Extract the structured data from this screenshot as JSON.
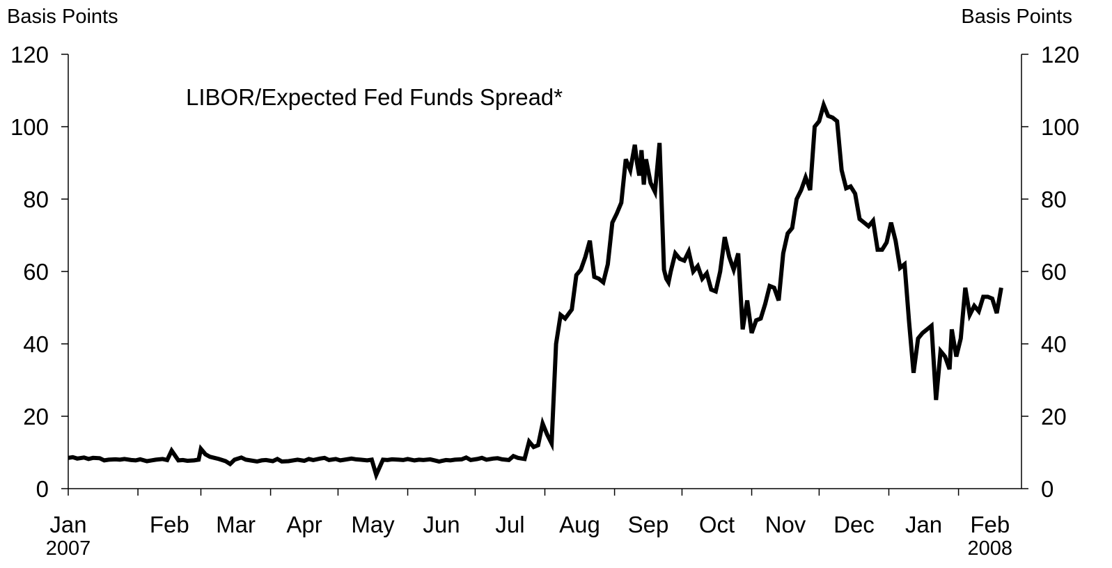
{
  "chart_data": {
    "type": "line",
    "title": "LIBOR/Expected Fed Funds Spread*",
    "ylabel_left": "Basis Points",
    "ylabel_right": "Basis Points",
    "ylim": [
      0,
      120
    ],
    "yticks": [
      0,
      20,
      40,
      60,
      80,
      100,
      120
    ],
    "xlim": [
      "2007-01-01",
      "2008-02-29"
    ],
    "xticks": [
      {
        "label": "Jan",
        "date": "2007-01-01"
      },
      {
        "label": "Feb",
        "date": "2007-02-01"
      },
      {
        "label": "Mar",
        "date": "2007-03-01"
      },
      {
        "label": "Apr",
        "date": "2007-04-01"
      },
      {
        "label": "May",
        "date": "2007-05-01"
      },
      {
        "label": "Jun",
        "date": "2007-06-01"
      },
      {
        "label": "Jul",
        "date": "2007-07-01"
      },
      {
        "label": "Aug",
        "date": "2007-08-01"
      },
      {
        "label": "Sep",
        "date": "2007-09-01"
      },
      {
        "label": "Oct",
        "date": "2007-10-01"
      },
      {
        "label": "Nov",
        "date": "2007-11-01"
      },
      {
        "label": "Dec",
        "date": "2007-12-01"
      },
      {
        "label": "Jan",
        "date": "2008-01-01"
      },
      {
        "label": "Feb",
        "date": "2008-02-01"
      }
    ],
    "year_labels": [
      {
        "label": "2007",
        "date": "2007-01-01"
      },
      {
        "label": "2008",
        "date": "2008-02-01"
      }
    ],
    "grid": false,
    "series": [
      {
        "color": "#000000",
        "x": [
          "2007-01-01",
          "2007-01-03",
          "2007-01-05",
          "2007-01-08",
          "2007-01-10",
          "2007-01-12",
          "2007-01-15",
          "2007-01-17",
          "2007-01-19",
          "2007-01-22",
          "2007-01-24",
          "2007-01-26",
          "2007-01-29",
          "2007-01-31",
          "2007-02-02",
          "2007-02-05",
          "2007-02-07",
          "2007-02-09",
          "2007-02-12",
          "2007-02-14",
          "2007-02-16",
          "2007-02-19",
          "2007-02-21",
          "2007-02-23",
          "2007-02-26",
          "2007-02-28",
          "2007-03-01",
          "2007-03-03",
          "2007-03-05",
          "2007-03-07",
          "2007-03-09",
          "2007-03-12",
          "2007-03-14",
          "2007-03-16",
          "2007-03-19",
          "2007-03-21",
          "2007-03-23",
          "2007-03-26",
          "2007-03-28",
          "2007-03-30",
          "2007-04-02",
          "2007-04-04",
          "2007-04-06",
          "2007-04-09",
          "2007-04-11",
          "2007-04-13",
          "2007-04-16",
          "2007-04-18",
          "2007-04-20",
          "2007-04-23",
          "2007-04-25",
          "2007-04-27",
          "2007-04-30",
          "2007-05-02",
          "2007-05-04",
          "2007-05-07",
          "2007-05-09",
          "2007-05-11",
          "2007-05-14",
          "2007-05-16",
          "2007-05-18",
          "2007-05-21",
          "2007-05-23",
          "2007-05-25",
          "2007-05-28",
          "2007-05-30",
          "2007-06-01",
          "2007-06-04",
          "2007-06-06",
          "2007-06-08",
          "2007-06-11",
          "2007-06-13",
          "2007-06-15",
          "2007-06-18",
          "2007-06-20",
          "2007-06-22",
          "2007-06-25",
          "2007-06-27",
          "2007-06-29",
          "2007-07-02",
          "2007-07-04",
          "2007-07-06",
          "2007-07-09",
          "2007-07-11",
          "2007-07-13",
          "2007-07-16",
          "2007-07-18",
          "2007-07-20",
          "2007-07-23",
          "2007-07-25",
          "2007-07-27",
          "2007-07-29",
          "2007-07-31",
          "2007-08-02",
          "2007-08-04",
          "2007-08-06",
          "2007-08-08",
          "2007-08-10",
          "2007-08-13",
          "2007-08-15",
          "2007-08-17",
          "2007-08-19",
          "2007-08-21",
          "2007-08-23",
          "2007-08-25",
          "2007-08-27",
          "2007-08-29",
          "2007-08-31",
          "2007-09-02",
          "2007-09-04",
          "2007-09-06",
          "2007-09-08",
          "2007-09-10",
          "2007-09-11",
          "2007-09-12",
          "2007-09-13",
          "2007-09-14",
          "2007-09-15",
          "2007-09-17",
          "2007-09-19",
          "2007-09-21",
          "2007-09-23",
          "2007-09-24",
          "2007-09-25",
          "2007-09-26",
          "2007-09-28",
          "2007-09-30",
          "2007-10-02",
          "2007-10-04",
          "2007-10-06",
          "2007-10-08",
          "2007-10-10",
          "2007-10-12",
          "2007-10-14",
          "2007-10-16",
          "2007-10-18",
          "2007-10-20",
          "2007-10-22",
          "2007-10-24",
          "2007-10-26",
          "2007-10-28",
          "2007-10-30",
          "2007-11-01",
          "2007-11-03",
          "2007-11-05",
          "2007-11-07",
          "2007-11-09",
          "2007-11-11",
          "2007-11-13",
          "2007-11-15",
          "2007-11-17",
          "2007-11-19",
          "2007-11-21",
          "2007-11-23",
          "2007-11-25",
          "2007-11-27",
          "2007-11-29",
          "2007-12-01",
          "2007-12-03",
          "2007-12-05",
          "2007-12-07",
          "2007-12-09",
          "2007-12-11",
          "2007-12-13",
          "2007-12-15",
          "2007-12-17",
          "2007-12-19",
          "2007-12-21",
          "2007-12-23",
          "2007-12-25",
          "2007-12-27",
          "2007-12-29",
          "2007-12-31",
          "2008-01-02",
          "2008-01-04",
          "2008-01-06",
          "2008-01-08",
          "2008-01-10",
          "2008-01-12",
          "2008-01-14",
          "2008-01-16",
          "2008-01-18",
          "2008-01-20",
          "2008-01-22",
          "2008-01-24",
          "2008-01-26",
          "2008-01-28",
          "2008-01-29",
          "2008-01-31",
          "2008-02-02",
          "2008-02-04",
          "2008-02-06",
          "2008-02-08",
          "2008-02-10",
          "2008-02-12",
          "2008-02-14",
          "2008-02-16",
          "2008-02-18",
          "2008-02-20"
        ],
        "y": [
          8.5,
          8.7,
          8.3,
          8.6,
          8.2,
          8.5,
          8.4,
          7.8,
          8.0,
          8.1,
          8.0,
          8.2,
          7.9,
          7.8,
          8.1,
          7.6,
          7.8,
          8.0,
          8.2,
          7.9,
          10.5,
          7.8,
          7.9,
          7.7,
          7.8,
          8.0,
          11.0,
          9.5,
          8.8,
          8.5,
          8.2,
          7.6,
          6.8,
          8.0,
          8.6,
          8.0,
          7.8,
          7.5,
          7.8,
          7.9,
          7.6,
          8.2,
          7.5,
          7.6,
          7.8,
          8.0,
          7.7,
          8.2,
          7.9,
          8.3,
          8.5,
          7.9,
          8.2,
          7.8,
          8.0,
          8.3,
          8.1,
          8.0,
          7.8,
          8.0,
          3.8,
          8.0,
          7.9,
          8.1,
          8.0,
          7.9,
          8.2,
          7.8,
          8.0,
          7.9,
          8.1,
          7.8,
          7.5,
          7.9,
          7.8,
          8.0,
          8.1,
          8.6,
          7.9,
          8.2,
          8.5,
          8.0,
          8.3,
          8.4,
          8.1,
          7.9,
          9.0,
          8.5,
          8.2,
          13.0,
          11.5,
          12.0,
          18.0,
          15.0,
          12.5,
          40.0,
          48.0,
          47.0,
          49.5,
          59.0,
          60.5,
          64.0,
          68.5,
          58.5,
          58.0,
          57.0,
          62.0,
          73.5,
          76.0,
          79.0,
          91.0,
          88.0,
          95.0,
          90.0,
          86.5,
          93.5,
          84.0,
          91.0,
          84.5,
          82.0,
          95.5,
          60.5,
          58.0,
          57.0,
          60.0,
          65.0,
          63.5,
          63.0,
          65.5,
          60.0,
          61.5,
          58.0,
          59.5,
          55.0,
          54.5,
          60.0,
          69.5,
          64.0,
          60.5,
          65.0,
          44.0,
          52.0,
          43.0,
          46.5,
          47.0,
          51.0,
          56.0,
          55.5,
          52.0,
          65.0,
          70.5,
          72.0,
          80.0,
          82.5,
          86.0,
          82.5,
          100.0,
          101.5,
          106.0,
          103.0,
          102.5,
          101.5,
          88.0,
          83.0,
          83.5,
          81.5,
          74.5,
          73.5,
          72.5,
          74.0,
          66.0,
          66.0,
          68.0,
          73.5,
          68.5,
          61.0,
          62.0,
          46.0,
          32.0,
          41.5,
          43.0,
          44.0,
          45.0,
          24.5,
          38.0,
          36.5,
          33.0,
          44.0,
          36.5,
          41.5,
          55.5,
          48.0,
          50.5,
          49.0,
          53.0,
          53.0,
          52.5,
          48.5,
          55.5
        ]
      }
    ]
  }
}
